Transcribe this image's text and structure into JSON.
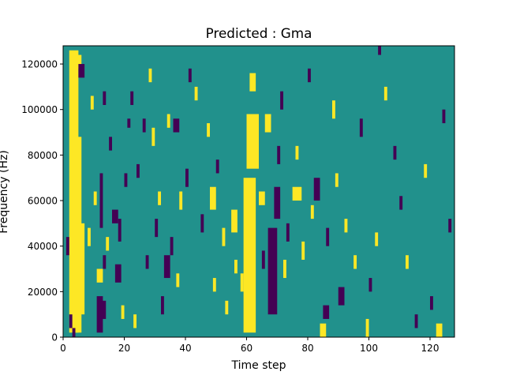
{
  "chart_data": {
    "type": "heatmap",
    "title": "Predicted : Gma",
    "xlabel": "Time step",
    "ylabel": "Frequency (Hz)",
    "xlim": [
      0,
      128
    ],
    "ylim": [
      0,
      128000
    ],
    "x_ticks": [
      0,
      20,
      40,
      60,
      80,
      100,
      120
    ],
    "y_ticks": [
      0,
      20000,
      40000,
      60000,
      80000,
      100000,
      120000
    ],
    "n_time": 128,
    "n_freq": 128,
    "grid": false,
    "legend": "none",
    "colormap": "viridis",
    "levels": [
      {
        "value": -1,
        "color": "#440154"
      },
      {
        "value": 0,
        "color": "#21918c"
      },
      {
        "value": 1,
        "color": "#fde725"
      }
    ],
    "background_value": 0,
    "cells": [
      {
        "t": [
          2,
          5
        ],
        "f": [
          2000,
          126000
        ],
        "v": 1
      },
      {
        "t": [
          3,
          6
        ],
        "f": [
          2000,
          88000
        ],
        "v": 1
      },
      {
        "t": [
          4,
          7
        ],
        "f": [
          10000,
          50000
        ],
        "v": 1
      },
      {
        "t": [
          1,
          2
        ],
        "f": [
          36000,
          44000
        ],
        "v": -1
      },
      {
        "t": [
          2,
          3
        ],
        "f": [
          4000,
          10000
        ],
        "v": -1
      },
      {
        "t": [
          3,
          4
        ],
        "f": [
          0,
          4000
        ],
        "v": -1
      },
      {
        "t": [
          4,
          6
        ],
        "f": [
          118000,
          124000
        ],
        "v": 1
      },
      {
        "t": [
          5,
          7
        ],
        "f": [
          114000,
          120000
        ],
        "v": -1
      },
      {
        "t": [
          8,
          9
        ],
        "f": [
          40000,
          48000
        ],
        "v": 1
      },
      {
        "t": [
          9,
          10
        ],
        "f": [
          100000,
          106000
        ],
        "v": 1
      },
      {
        "t": [
          10,
          11
        ],
        "f": [
          58000,
          64000
        ],
        "v": 1
      },
      {
        "t": [
          11,
          13
        ],
        "f": [
          24000,
          30000
        ],
        "v": 1
      },
      {
        "t": [
          11,
          13
        ],
        "f": [
          2000,
          18000
        ],
        "v": -1
      },
      {
        "t": [
          12,
          14
        ],
        "f": [
          8000,
          16000
        ],
        "v": -1
      },
      {
        "t": [
          12,
          13
        ],
        "f": [
          48000,
          72000
        ],
        "v": -1
      },
      {
        "t": [
          13,
          14
        ],
        "f": [
          30000,
          36000
        ],
        "v": -1
      },
      {
        "t": [
          13,
          14
        ],
        "f": [
          102000,
          108000
        ],
        "v": -1
      },
      {
        "t": [
          14,
          15
        ],
        "f": [
          38000,
          44000
        ],
        "v": 1
      },
      {
        "t": [
          15,
          16
        ],
        "f": [
          82000,
          88000
        ],
        "v": -1
      },
      {
        "t": [
          16,
          18
        ],
        "f": [
          50000,
          56000
        ],
        "v": -1
      },
      {
        "t": [
          17,
          19
        ],
        "f": [
          24000,
          32000
        ],
        "v": -1
      },
      {
        "t": [
          18,
          19
        ],
        "f": [
          42000,
          52000
        ],
        "v": -1
      },
      {
        "t": [
          19,
          20
        ],
        "f": [
          8000,
          14000
        ],
        "v": 1
      },
      {
        "t": [
          20,
          21
        ],
        "f": [
          66000,
          72000
        ],
        "v": -1
      },
      {
        "t": [
          21,
          22
        ],
        "f": [
          92000,
          96000
        ],
        "v": -1
      },
      {
        "t": [
          22,
          23
        ],
        "f": [
          102000,
          108000
        ],
        "v": -1
      },
      {
        "t": [
          23,
          24
        ],
        "f": [
          4000,
          10000
        ],
        "v": 1
      },
      {
        "t": [
          24,
          25
        ],
        "f": [
          70000,
          76000
        ],
        "v": -1
      },
      {
        "t": [
          26,
          27
        ],
        "f": [
          90000,
          96000
        ],
        "v": -1
      },
      {
        "t": [
          27,
          28
        ],
        "f": [
          30000,
          36000
        ],
        "v": -1
      },
      {
        "t": [
          28,
          29
        ],
        "f": [
          112000,
          118000
        ],
        "v": 1
      },
      {
        "t": [
          29,
          30
        ],
        "f": [
          84000,
          92000
        ],
        "v": 1
      },
      {
        "t": [
          30,
          31
        ],
        "f": [
          44000,
          52000
        ],
        "v": -1
      },
      {
        "t": [
          31,
          32
        ],
        "f": [
          58000,
          64000
        ],
        "v": 1
      },
      {
        "t": [
          32,
          33
        ],
        "f": [
          10000,
          18000
        ],
        "v": -1
      },
      {
        "t": [
          33,
          35
        ],
        "f": [
          26000,
          36000
        ],
        "v": -1
      },
      {
        "t": [
          34,
          35
        ],
        "f": [
          92000,
          98000
        ],
        "v": 1
      },
      {
        "t": [
          35,
          36
        ],
        "f": [
          36000,
          44000
        ],
        "v": -1
      },
      {
        "t": [
          36,
          38
        ],
        "f": [
          90000,
          96000
        ],
        "v": -1
      },
      {
        "t": [
          37,
          38
        ],
        "f": [
          22000,
          28000
        ],
        "v": 1
      },
      {
        "t": [
          38,
          39
        ],
        "f": [
          56000,
          64000
        ],
        "v": 1
      },
      {
        "t": [
          40,
          41
        ],
        "f": [
          66000,
          74000
        ],
        "v": -1
      },
      {
        "t": [
          41,
          42
        ],
        "f": [
          112000,
          118000
        ],
        "v": -1
      },
      {
        "t": [
          43,
          44
        ],
        "f": [
          104000,
          110000
        ],
        "v": 1
      },
      {
        "t": [
          45,
          46
        ],
        "f": [
          46000,
          54000
        ],
        "v": -1
      },
      {
        "t": [
          47,
          48
        ],
        "f": [
          88000,
          94000
        ],
        "v": 1
      },
      {
        "t": [
          48,
          50
        ],
        "f": [
          56000,
          66000
        ],
        "v": 1
      },
      {
        "t": [
          49,
          50
        ],
        "f": [
          20000,
          26000
        ],
        "v": 1
      },
      {
        "t": [
          50,
          51
        ],
        "f": [
          72000,
          78000
        ],
        "v": -1
      },
      {
        "t": [
          52,
          53
        ],
        "f": [
          40000,
          48000
        ],
        "v": 1
      },
      {
        "t": [
          53,
          54
        ],
        "f": [
          10000,
          16000
        ],
        "v": 1
      },
      {
        "t": [
          55,
          57
        ],
        "f": [
          46000,
          56000
        ],
        "v": 1
      },
      {
        "t": [
          56,
          57
        ],
        "f": [
          28000,
          34000
        ],
        "v": 1
      },
      {
        "t": [
          58,
          59
        ],
        "f": [
          20000,
          28000
        ],
        "v": 1
      },
      {
        "t": [
          59,
          63
        ],
        "f": [
          2000,
          70000
        ],
        "v": 1
      },
      {
        "t": [
          60,
          64
        ],
        "f": [
          74000,
          98000
        ],
        "v": 1
      },
      {
        "t": [
          61,
          63
        ],
        "f": [
          108000,
          116000
        ],
        "v": 1
      },
      {
        "t": [
          64,
          66
        ],
        "f": [
          58000,
          64000
        ],
        "v": 1
      },
      {
        "t": [
          65,
          66
        ],
        "f": [
          30000,
          38000
        ],
        "v": -1
      },
      {
        "t": [
          66,
          68
        ],
        "f": [
          90000,
          98000
        ],
        "v": 1
      },
      {
        "t": [
          67,
          70
        ],
        "f": [
          10000,
          48000
        ],
        "v": -1
      },
      {
        "t": [
          69,
          71
        ],
        "f": [
          52000,
          66000
        ],
        "v": -1
      },
      {
        "t": [
          70,
          71
        ],
        "f": [
          76000,
          84000
        ],
        "v": -1
      },
      {
        "t": [
          71,
          72
        ],
        "f": [
          100000,
          108000
        ],
        "v": -1
      },
      {
        "t": [
          72,
          73
        ],
        "f": [
          26000,
          34000
        ],
        "v": 1
      },
      {
        "t": [
          73,
          74
        ],
        "f": [
          42000,
          50000
        ],
        "v": -1
      },
      {
        "t": [
          75,
          78
        ],
        "f": [
          60000,
          66000
        ],
        "v": 1
      },
      {
        "t": [
          76,
          77
        ],
        "f": [
          78000,
          84000
        ],
        "v": 1
      },
      {
        "t": [
          78,
          79
        ],
        "f": [
          34000,
          42000
        ],
        "v": 1
      },
      {
        "t": [
          80,
          81
        ],
        "f": [
          112000,
          118000
        ],
        "v": -1
      },
      {
        "t": [
          81,
          82
        ],
        "f": [
          52000,
          58000
        ],
        "v": 1
      },
      {
        "t": [
          82,
          84
        ],
        "f": [
          60000,
          70000
        ],
        "v": -1
      },
      {
        "t": [
          84,
          86
        ],
        "f": [
          0,
          6000
        ],
        "v": 1
      },
      {
        "t": [
          85,
          87
        ],
        "f": [
          8000,
          14000
        ],
        "v": -1
      },
      {
        "t": [
          86,
          87
        ],
        "f": [
          40000,
          48000
        ],
        "v": -1
      },
      {
        "t": [
          88,
          89
        ],
        "f": [
          96000,
          104000
        ],
        "v": 1
      },
      {
        "t": [
          89,
          90
        ],
        "f": [
          66000,
          72000
        ],
        "v": 1
      },
      {
        "t": [
          90,
          92
        ],
        "f": [
          14000,
          22000
        ],
        "v": -1
      },
      {
        "t": [
          92,
          93
        ],
        "f": [
          46000,
          52000
        ],
        "v": 1
      },
      {
        "t": [
          95,
          96
        ],
        "f": [
          30000,
          36000
        ],
        "v": 1
      },
      {
        "t": [
          97,
          98
        ],
        "f": [
          88000,
          96000
        ],
        "v": -1
      },
      {
        "t": [
          99,
          100
        ],
        "f": [
          0,
          8000
        ],
        "v": 1
      },
      {
        "t": [
          100,
          101
        ],
        "f": [
          20000,
          26000
        ],
        "v": -1
      },
      {
        "t": [
          102,
          103
        ],
        "f": [
          40000,
          46000
        ],
        "v": 1
      },
      {
        "t": [
          103,
          104
        ],
        "f": [
          124000,
          128000
        ],
        "v": -1
      },
      {
        "t": [
          105,
          106
        ],
        "f": [
          104000,
          110000
        ],
        "v": 1
      },
      {
        "t": [
          108,
          109
        ],
        "f": [
          78000,
          84000
        ],
        "v": -1
      },
      {
        "t": [
          110,
          111
        ],
        "f": [
          56000,
          62000
        ],
        "v": -1
      },
      {
        "t": [
          112,
          113
        ],
        "f": [
          30000,
          36000
        ],
        "v": 1
      },
      {
        "t": [
          115,
          116
        ],
        "f": [
          4000,
          10000
        ],
        "v": -1
      },
      {
        "t": [
          118,
          119
        ],
        "f": [
          70000,
          76000
        ],
        "v": 1
      },
      {
        "t": [
          120,
          121
        ],
        "f": [
          12000,
          18000
        ],
        "v": -1
      },
      {
        "t": [
          122,
          124
        ],
        "f": [
          0,
          6000
        ],
        "v": 1
      },
      {
        "t": [
          124,
          125
        ],
        "f": [
          94000,
          100000
        ],
        "v": -1
      },
      {
        "t": [
          126,
          127
        ],
        "f": [
          46000,
          52000
        ],
        "v": -1
      }
    ]
  }
}
